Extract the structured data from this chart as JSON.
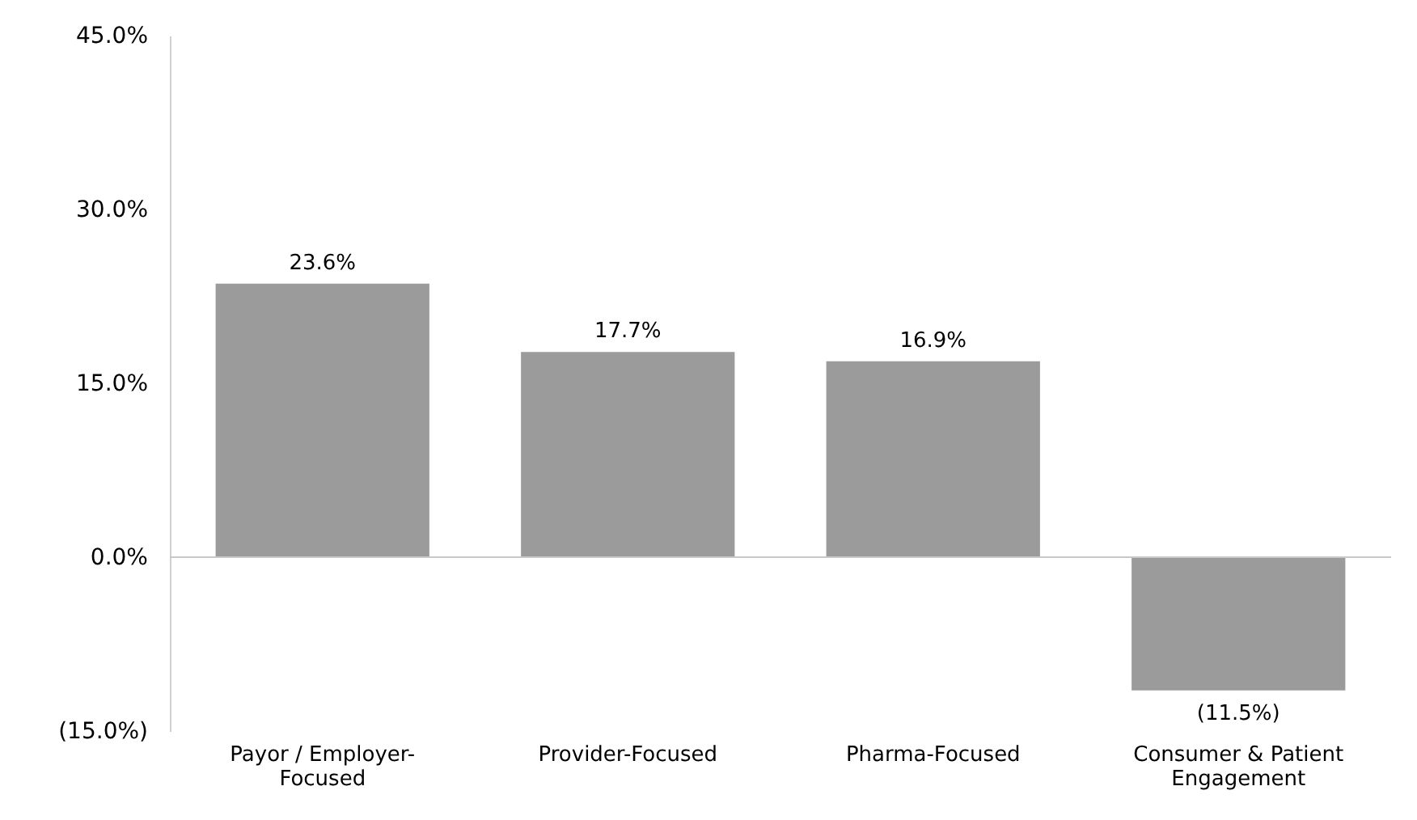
{
  "chart_data": {
    "type": "bar",
    "categories": [
      "Payor / Employer-Focused",
      "Provider-Focused",
      "Pharma-Focused",
      "Consumer & Patient Engagement"
    ],
    "values": [
      23.6,
      17.7,
      16.9,
      -11.5
    ],
    "value_labels": [
      "23.6%",
      "17.7%",
      "16.9%",
      "(11.5%)"
    ],
    "color": "#9b9b9c",
    "ylim": [
      -15,
      45
    ],
    "yticks": [
      {
        "value": -15,
        "label": "(15.0%)"
      },
      {
        "value": 0,
        "label": "0.0%"
      },
      {
        "value": 15,
        "label": "15.0%"
      },
      {
        "value": 30,
        "label": "30.0%"
      },
      {
        "value": 45,
        "label": "45.0%"
      }
    ],
    "ref_lines": [
      {
        "axis": "y",
        "value": 0,
        "color": "#c8c8c8"
      }
    ],
    "grid": false
  }
}
